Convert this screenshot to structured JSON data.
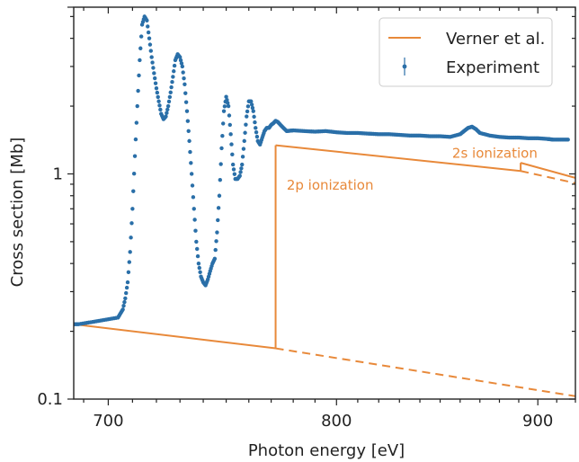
{
  "chart_data": {
    "type": "scatter",
    "title": "",
    "xlabel": "Photon energy [eV]",
    "ylabel": "Cross section [Mb]",
    "xscale": "log",
    "yscale": "log",
    "xlim": [
      686,
      920
    ],
    "ylim": [
      0.1,
      5.5
    ],
    "x_ticks": [
      700,
      800,
      900
    ],
    "y_ticks": [
      0.1,
      1
    ],
    "grid": false,
    "legend_position": "top-right",
    "colors": {
      "model": "#e8893a",
      "experiment": "#2a6fa8"
    },
    "annotations": [
      {
        "text": "2p ionization",
        "x": 777,
        "y": 0.85
      },
      {
        "text": "2s ionization",
        "x": 856,
        "y": 1.18
      }
    ],
    "series": [
      {
        "name": "Verner et al.",
        "style": "line",
        "segments": [
          {
            "style": "solid",
            "points": [
              [
                686,
                0.215
              ],
              [
                772,
                0.168
              ]
            ]
          },
          {
            "style": "solid",
            "points": [
              [
                772,
                0.168
              ],
              [
                772,
                1.34
              ]
            ]
          },
          {
            "style": "solid",
            "points": [
              [
                772,
                1.34
              ],
              [
                891,
                1.03
              ]
            ]
          },
          {
            "style": "solid",
            "points": [
              [
                891,
                1.03
              ],
              [
                891,
                1.12
              ]
            ]
          },
          {
            "style": "solid",
            "points": [
              [
                891,
                1.12
              ],
              [
                920,
                0.96
              ]
            ]
          },
          {
            "style": "dashed",
            "points": [
              [
                772,
                0.168
              ],
              [
                920,
                0.103
              ]
            ]
          },
          {
            "style": "dashed",
            "points": [
              [
                891,
                1.03
              ],
              [
                920,
                0.91
              ]
            ]
          }
        ]
      },
      {
        "name": "Experiment",
        "style": "scatter",
        "points": [
          [
            686,
            0.215
          ],
          [
            688,
            0.215
          ],
          [
            704,
            0.23
          ],
          [
            705,
            0.24
          ],
          [
            706,
            0.25
          ],
          [
            707,
            0.28
          ],
          [
            708,
            0.33
          ],
          [
            709,
            0.45
          ],
          [
            710,
            0.7
          ],
          [
            711,
            1.2
          ],
          [
            712,
            2.0
          ],
          [
            713,
            3.2
          ],
          [
            714,
            4.6
          ],
          [
            715,
            5.0
          ],
          [
            716,
            4.8
          ],
          [
            717,
            4.0
          ],
          [
            718,
            3.3
          ],
          [
            719,
            2.8
          ],
          [
            720,
            2.4
          ],
          [
            721,
            2.1
          ],
          [
            722,
            1.85
          ],
          [
            723,
            1.75
          ],
          [
            724,
            1.8
          ],
          [
            725,
            2.0
          ],
          [
            726,
            2.3
          ],
          [
            727,
            2.7
          ],
          [
            728,
            3.2
          ],
          [
            729,
            3.4
          ],
          [
            730,
            3.3
          ],
          [
            731,
            3.0
          ],
          [
            732,
            2.5
          ],
          [
            733,
            1.9
          ],
          [
            734,
            1.4
          ],
          [
            735,
            1.0
          ],
          [
            736,
            0.7
          ],
          [
            737,
            0.5
          ],
          [
            738,
            0.4
          ],
          [
            739,
            0.35
          ],
          [
            740,
            0.33
          ],
          [
            741,
            0.32
          ],
          [
            742,
            0.34
          ],
          [
            743,
            0.37
          ],
          [
            744,
            0.4
          ],
          [
            745,
            0.42
          ],
          [
            746,
            0.55
          ],
          [
            747,
            0.8
          ],
          [
            748,
            1.3
          ],
          [
            749,
            1.9
          ],
          [
            750,
            2.2
          ],
          [
            751,
            2.0
          ],
          [
            752,
            1.5
          ],
          [
            753,
            1.1
          ],
          [
            754,
            0.95
          ],
          [
            755,
            0.95
          ],
          [
            756,
            0.98
          ],
          [
            757,
            1.1
          ],
          [
            758,
            1.4
          ],
          [
            759,
            1.8
          ],
          [
            760,
            2.1
          ],
          [
            761,
            2.1
          ],
          [
            762,
            1.9
          ],
          [
            763,
            1.6
          ],
          [
            764,
            1.4
          ],
          [
            765,
            1.35
          ],
          [
            766,
            1.45
          ],
          [
            767,
            1.55
          ],
          [
            768,
            1.6
          ],
          [
            769,
            1.6
          ],
          [
            770,
            1.65
          ],
          [
            771,
            1.68
          ],
          [
            772,
            1.72
          ],
          [
            773,
            1.7
          ],
          [
            775,
            1.62
          ],
          [
            777,
            1.55
          ],
          [
            780,
            1.56
          ],
          [
            785,
            1.55
          ],
          [
            790,
            1.54
          ],
          [
            795,
            1.55
          ],
          [
            800,
            1.53
          ],
          [
            805,
            1.52
          ],
          [
            810,
            1.52
          ],
          [
            815,
            1.51
          ],
          [
            820,
            1.5
          ],
          [
            825,
            1.5
          ],
          [
            830,
            1.49
          ],
          [
            835,
            1.48
          ],
          [
            840,
            1.48
          ],
          [
            845,
            1.47
          ],
          [
            850,
            1.47
          ],
          [
            855,
            1.46
          ],
          [
            860,
            1.5
          ],
          [
            862,
            1.55
          ],
          [
            864,
            1.6
          ],
          [
            866,
            1.62
          ],
          [
            868,
            1.58
          ],
          [
            870,
            1.52
          ],
          [
            875,
            1.48
          ],
          [
            880,
            1.46
          ],
          [
            885,
            1.45
          ],
          [
            890,
            1.45
          ],
          [
            895,
            1.44
          ],
          [
            900,
            1.44
          ],
          [
            905,
            1.43
          ],
          [
            908,
            1.42
          ],
          [
            912,
            1.42
          ],
          [
            916,
            1.42
          ]
        ]
      }
    ]
  }
}
